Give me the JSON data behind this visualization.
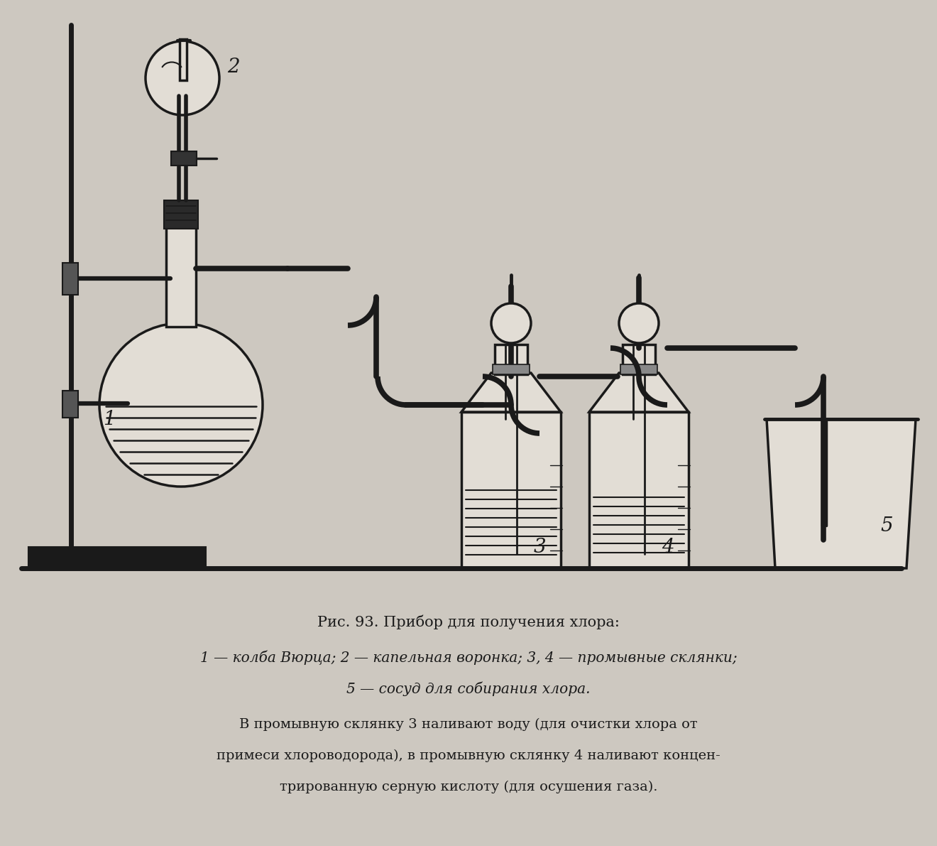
{
  "bg_color": "#c8c4bc",
  "paper_color": "#d4d0c8",
  "line_color": "#1a1a1a",
  "title_line1": "Рис. 93. Прибор для получения хлора:",
  "title_line2": "1 — колба Вюрца; 2 — капельная воронка; 3, 4 — промывные склянки;",
  "title_line3": "5 — сосуд для собирания хлора.",
  "body_line1": "В промывную склянку 3 наливают воду (для очистки хлора от",
  "body_line2": "примеси хлороводорода), в промывную склянку 4 наливают концен-",
  "body_line3": "трированную серную кислоту (для осушения газа).",
  "fig_width": 13.2,
  "fig_height": 11.91,
  "dpi": 100
}
